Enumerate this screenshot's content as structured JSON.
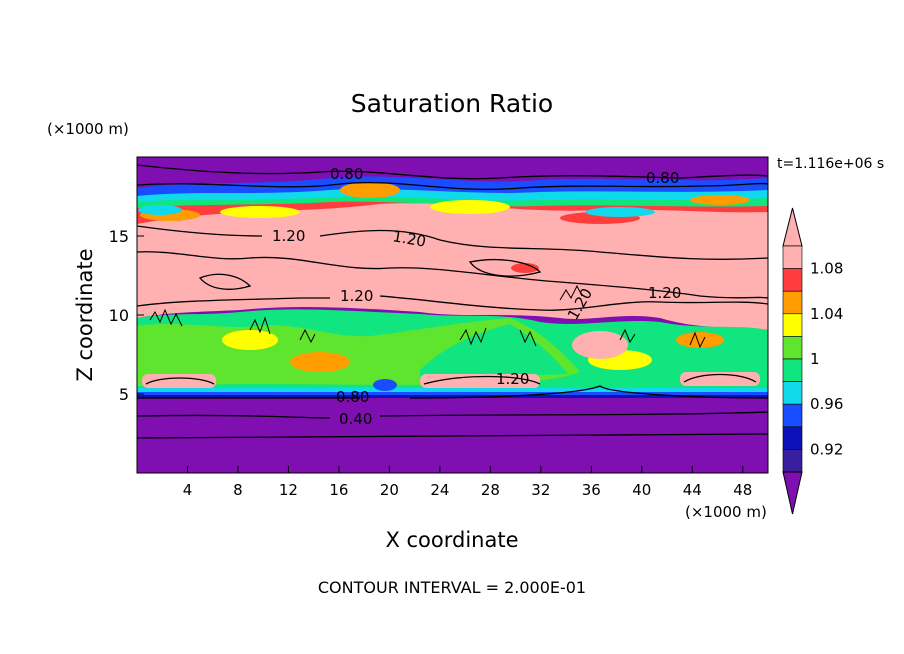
{
  "chart_data": {
    "type": "heatmap",
    "title": "Saturation Ratio",
    "time_label": "t=1.116e+06 s",
    "xlabel": "X coordinate",
    "ylabel": "Z coordinate",
    "x_unit": "(×1000 m)",
    "y_unit": "(×1000 m)",
    "footer": "CONTOUR INTERVAL = 2.000E-01",
    "xlim": [
      0,
      50
    ],
    "ylim": [
      0,
      20
    ],
    "x_ticks": [
      "4",
      "8",
      "12",
      "16",
      "20",
      "24",
      "28",
      "32",
      "36",
      "40",
      "44",
      "48"
    ],
    "x_tick_values": [
      4,
      8,
      12,
      16,
      20,
      24,
      28,
      32,
      36,
      40,
      44,
      48
    ],
    "y_ticks": [
      "5",
      "10",
      "15"
    ],
    "y_tick_values": [
      5,
      10,
      15
    ],
    "colorbar": {
      "labels": [
        "0.92",
        "0.96",
        "1",
        "1.04",
        "1.08"
      ],
      "label_values": [
        0.92,
        0.96,
        1.0,
        1.04,
        1.08
      ],
      "bins": [
        {
          "value": 0.92,
          "color": "#3a1ea0"
        },
        {
          "value": 0.94,
          "color": "#0b13b8"
        },
        {
          "value": 0.96,
          "color": "#1a4dff"
        },
        {
          "value": 0.98,
          "color": "#11d9ec"
        },
        {
          "value": 1.0,
          "color": "#11e57f"
        },
        {
          "value": 1.02,
          "color": "#5fe52e"
        },
        {
          "value": 1.04,
          "color": "#ffff00"
        },
        {
          "value": 1.06,
          "color": "#ff9c00"
        },
        {
          "value": 1.08,
          "color": "#ff3d3d"
        },
        {
          "value": 1.1,
          "color": "#ffb0b0"
        }
      ],
      "under_color": "#7f0fb0",
      "over_color": "#ffb0b0"
    },
    "contour_labels": [
      "0.80",
      "0.80",
      "1.20",
      "1.20",
      "1.20",
      "1.20",
      "1.20",
      "1.20",
      "0.80",
      "0.40"
    ],
    "colors": {
      "dry": "#7f0fb0",
      "supersaturated": "#ffb0b0"
    }
  }
}
